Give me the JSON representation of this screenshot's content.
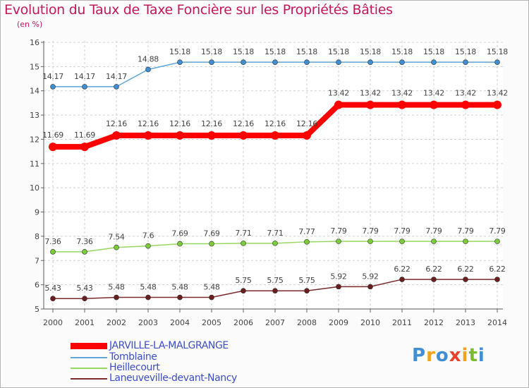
{
  "header": {
    "title": "Evolution du Taux de Taxe Foncière sur les Propriétés Bâties",
    "subtitle": "(en %)"
  },
  "brand": {
    "text": "Proxiti",
    "letters": [
      "P",
      "r",
      "o",
      "x",
      "i",
      "t",
      "i"
    ],
    "colors": [
      "#3f8fd2",
      "#f4a21c",
      "#3f8fd2",
      "#e8412c",
      "#f4a21c",
      "#7cbb2d",
      "#3f8fd2"
    ]
  },
  "chart_data": {
    "type": "line",
    "title": "Evolution du Taux de Taxe Foncière sur les Propriétés Bâties",
    "ylabel": "(en %)",
    "xlabel": "",
    "ylim": [
      5,
      16
    ],
    "yticks": [
      "5",
      "6",
      "7",
      "8",
      "9",
      "10",
      "11",
      "12",
      "13",
      "14",
      "15",
      "16"
    ],
    "x": [
      "2000",
      "2001",
      "2002",
      "2003",
      "2004",
      "2005",
      "2006",
      "2007",
      "2008",
      "2009",
      "2010",
      "2011",
      "2012",
      "2013",
      "2014"
    ],
    "grid": true,
    "legend_position": "bottom-left",
    "series": [
      {
        "name": "JARVILLE-LA-MALGRANGE",
        "color": "#ff0000",
        "values": [
          11.69,
          11.69,
          12.16,
          12.16,
          12.16,
          12.16,
          12.16,
          12.16,
          12.16,
          13.42,
          13.42,
          13.42,
          13.42,
          13.42,
          13.42
        ],
        "labels": [
          "11.69",
          "11.69",
          "12.16",
          "12.16",
          "12.16",
          "12.16",
          "12.16",
          "12.16",
          "12.16",
          "13.42",
          "13.42",
          "13.42",
          "13.42",
          "13.42",
          "13.42"
        ]
      },
      {
        "name": "Tomblaine",
        "color": "#5ea5d8",
        "values": [
          14.17,
          14.17,
          14.17,
          14.88,
          15.18,
          15.18,
          15.18,
          15.18,
          15.18,
          15.18,
          15.18,
          15.18,
          15.18,
          15.18,
          15.18
        ],
        "labels": [
          "14.17",
          "14.17",
          "14.17",
          "14.88",
          "15.18",
          "15.18",
          "15.18",
          "15.18",
          "15.18",
          "15.18",
          "15.18",
          "15.18",
          "15.18",
          "15.18",
          "15.18"
        ]
      },
      {
        "name": "Heillecourt",
        "color": "#96d85f",
        "values": [
          7.36,
          7.36,
          7.54,
          7.6,
          7.69,
          7.69,
          7.71,
          7.71,
          7.77,
          7.79,
          7.79,
          7.79,
          7.79,
          7.79,
          7.79
        ],
        "labels": [
          "7.36",
          "7.36",
          "7.54",
          "7.6",
          "7.69",
          "7.69",
          "7.71",
          "7.71",
          "7.77",
          "7.79",
          "7.79",
          "7.79",
          "7.79",
          "7.79",
          "7.79"
        ]
      },
      {
        "name": "Laneuveville-devant-Nancy",
        "color": "#7a2a2a",
        "values": [
          5.43,
          5.43,
          5.48,
          5.48,
          5.48,
          5.48,
          5.75,
          5.75,
          5.75,
          5.92,
          5.92,
          6.22,
          6.22,
          6.22,
          6.22
        ],
        "labels": [
          "5.43",
          "5.43",
          "5.48",
          "5.48",
          "5.48",
          "5.48",
          "5.75",
          "5.75",
          "5.75",
          "5.92",
          "5.92",
          "6.22",
          "6.22",
          "6.22",
          "6.22"
        ]
      }
    ]
  }
}
